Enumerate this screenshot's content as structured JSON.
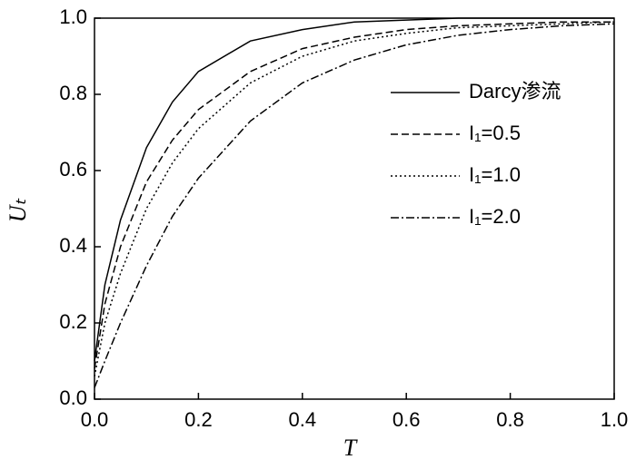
{
  "chart_data": {
    "type": "line",
    "x_label": "T",
    "y_label": "Uₜ",
    "x": [
      0,
      0.02,
      0.05,
      0.1,
      0.15,
      0.2,
      0.3,
      0.4,
      0.5,
      0.6,
      0.7,
      0.8,
      0.9,
      1.0
    ],
    "series": [
      {
        "name": "Darcy渗流",
        "color": "#000000",
        "dash": "solid",
        "values": [
          0.1,
          0.3,
          0.47,
          0.66,
          0.78,
          0.86,
          0.94,
          0.97,
          0.99,
          0.995,
          1.0,
          1.0,
          1.0,
          1.0
        ]
      },
      {
        "name": "I₁=0.5",
        "color": "#000000",
        "dash": "dashed",
        "values": [
          0.08,
          0.25,
          0.4,
          0.57,
          0.68,
          0.76,
          0.86,
          0.92,
          0.95,
          0.97,
          0.98,
          0.985,
          0.99,
          0.99
        ]
      },
      {
        "name": "I₁=1.0",
        "color": "#000000",
        "dash": "dotted",
        "values": [
          0.06,
          0.2,
          0.33,
          0.5,
          0.62,
          0.71,
          0.83,
          0.9,
          0.94,
          0.96,
          0.975,
          0.98,
          0.985,
          0.99
        ]
      },
      {
        "name": "I₁=2.0",
        "color": "#000000",
        "dash": "dashdot",
        "values": [
          0.03,
          0.1,
          0.2,
          0.35,
          0.48,
          0.58,
          0.73,
          0.83,
          0.89,
          0.93,
          0.955,
          0.97,
          0.98,
          0.985
        ]
      }
    ],
    "xlim": [
      0,
      1.0
    ],
    "ylim": [
      0,
      1.0
    ],
    "xticks": [
      {
        "value": 0,
        "label": "0.0"
      },
      0.2,
      0.4,
      0.6,
      0.8,
      {
        "value": 1,
        "label": "1.0"
      }
    ],
    "yticks": [
      {
        "value": 0,
        "label": "0.0"
      },
      0.2,
      0.4,
      0.6,
      0.8,
      {
        "value": 1,
        "label": "1.0"
      }
    ],
    "grid": false,
    "legend": "right"
  }
}
